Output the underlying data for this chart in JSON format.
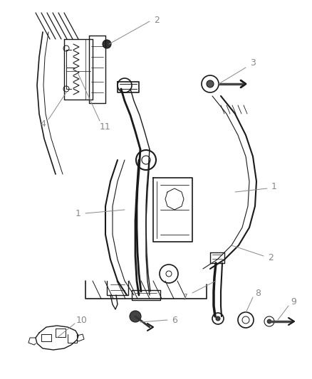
{
  "background_color": "#ffffff",
  "line_color": "#1a1a1a",
  "label_color": "#666666",
  "figsize": [
    4.38,
    5.33
  ],
  "dpi": 100,
  "img_extent": [
    0,
    438,
    0,
    533
  ]
}
